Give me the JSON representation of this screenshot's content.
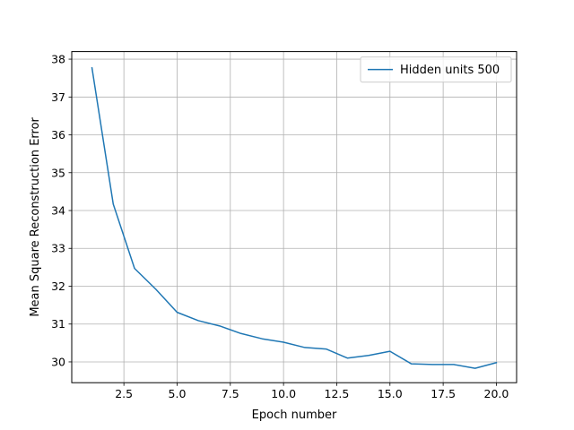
{
  "chart_data": {
    "type": "line",
    "xlabel": "Epoch number",
    "ylabel": "Mean Square Reconstruction Error",
    "xlim": [
      0.05,
      20.95
    ],
    "ylim": [
      29.45,
      38.2
    ],
    "xticks": [
      2.5,
      5.0,
      7.5,
      10.0,
      12.5,
      15.0,
      17.5,
      20.0
    ],
    "xtick_labels": [
      "2.5",
      "5.0",
      "7.5",
      "10.0",
      "12.5",
      "15.0",
      "17.5",
      "20.0"
    ],
    "yticks": [
      30,
      31,
      32,
      33,
      34,
      35,
      36,
      37,
      38
    ],
    "ytick_labels": [
      "30",
      "31",
      "32",
      "33",
      "34",
      "35",
      "36",
      "37",
      "38"
    ],
    "grid": true,
    "legend_position": "top-right",
    "series": [
      {
        "name": "Hidden units 500",
        "color": "#1f77b4",
        "x": [
          1,
          2,
          3,
          4,
          5,
          6,
          7,
          8,
          9,
          10,
          11,
          12,
          13,
          14,
          15,
          16,
          17,
          18,
          19,
          20
        ],
        "y": [
          37.77,
          34.17,
          32.47,
          31.92,
          31.31,
          31.09,
          30.95,
          30.75,
          30.61,
          30.52,
          30.38,
          30.34,
          30.1,
          30.17,
          30.28,
          29.95,
          29.93,
          29.93,
          29.83,
          29.98
        ]
      }
    ]
  }
}
